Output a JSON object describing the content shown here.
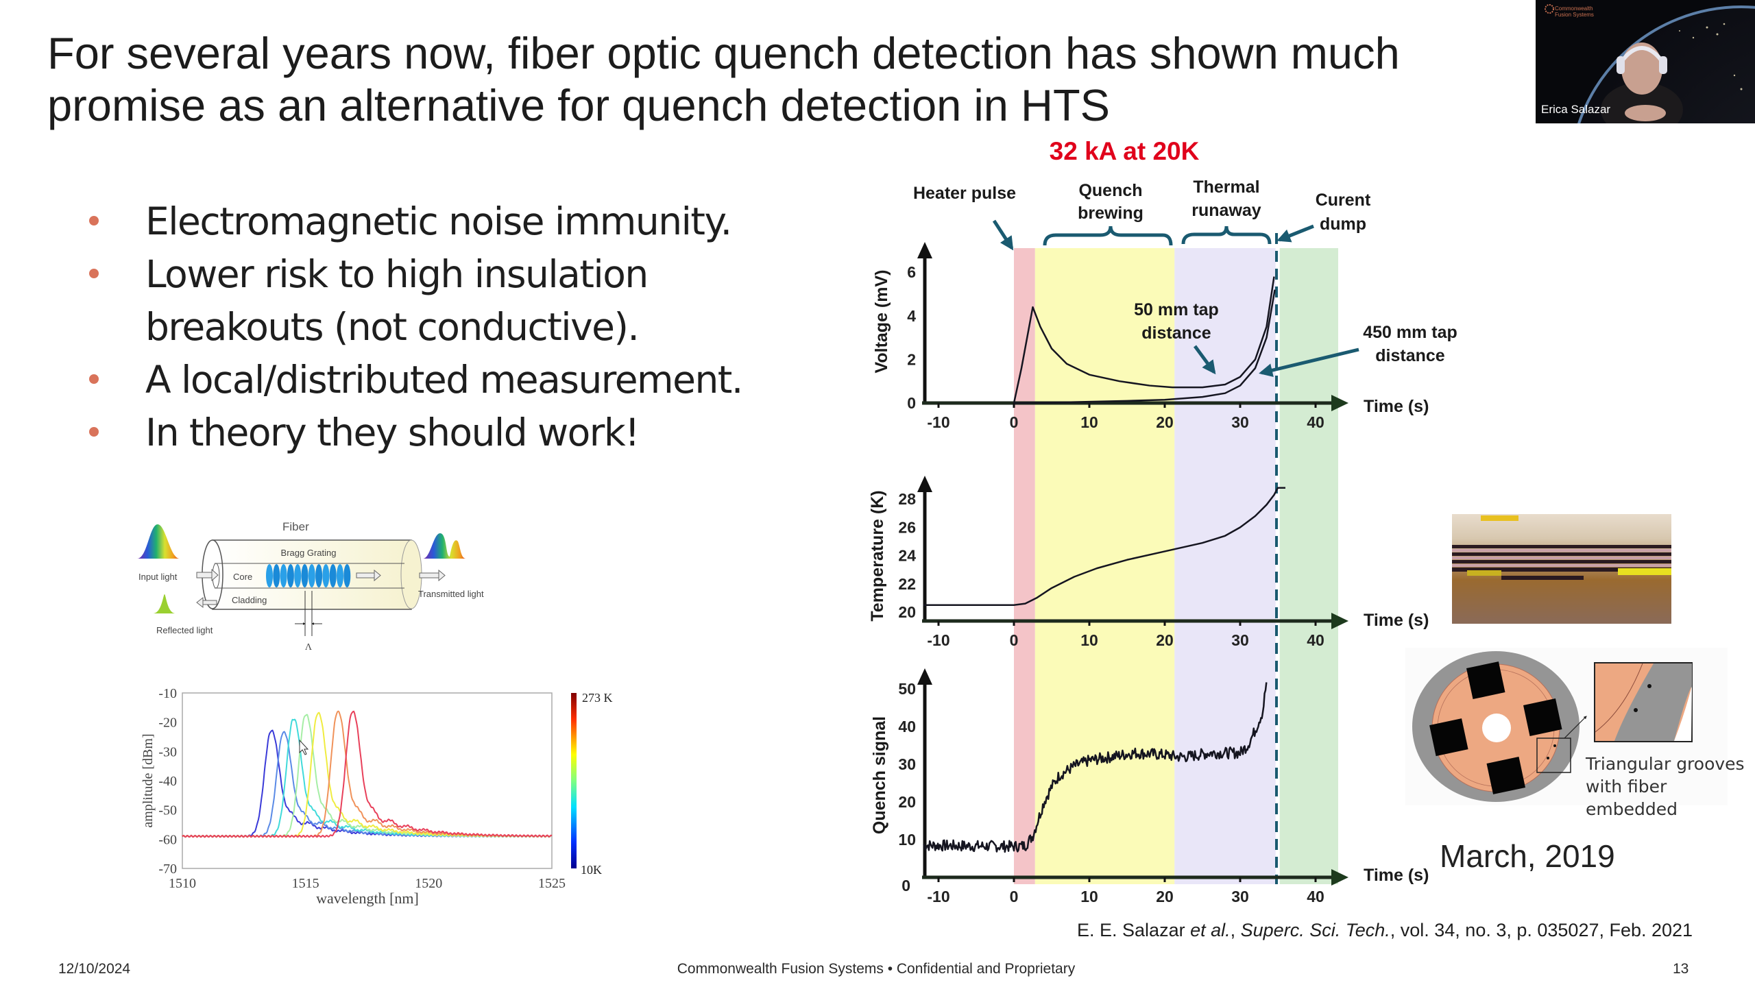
{
  "slide": {
    "title": "For several years now, fiber optic quench detection has shown much promise as an alternative for quench detection in HTS",
    "bullets": [
      "Electromagnetic noise immunity.",
      "Lower risk to high insulation breakouts (not conductive).",
      "A local/distributed measurement.",
      "In theory they should work!"
    ],
    "footer": {
      "date": "12/10/2024",
      "center": "Commonwealth Fusion Systems • Confidential and Proprietary",
      "page_number": "13"
    },
    "citation": {
      "authors": "E. E. Salazar ",
      "etal": "et al.",
      "sep": ", ",
      "journal": "Superc. Sci. Tech.",
      "rest": ", vol. 34, no. 3, p. 035027, Feb. 2021"
    },
    "date_label": "March, 2019",
    "grooves_caption": "Triangular grooves with fiber embedded",
    "bullet_color": "#d9735a"
  },
  "webcam": {
    "participant_name": "Erica Salazar",
    "logo_text": "Commonwealth Fusion Systems"
  },
  "bragg_diagram": {
    "fiber": "Fiber",
    "bragg_grating": "Bragg Grating",
    "input_light": "Input light",
    "core": "Core",
    "cladding": "Cladding",
    "transmitted_light": "Transmitted light",
    "reflected_light": "Reflected light",
    "period_symbol": "Λ"
  },
  "figure": {
    "headline": "32 kA at 20K",
    "headline_color": "#e0001b",
    "phases": {
      "heater_pulse": "Heater pulse",
      "quench_brewing": [
        "Quench",
        "brewing"
      ],
      "thermal_runaway": [
        "Thermal",
        "runaway"
      ],
      "current_dump": [
        "Curent",
        "dump"
      ]
    },
    "tap_50": [
      "50 mm tap",
      "distance"
    ],
    "tap_450": [
      "450 mm tap",
      "distance"
    ],
    "arrow_color": "#1a5a70",
    "band_colors": {
      "heater": "#f4c4c8",
      "brewing": "#fbfbb8",
      "runaway": "#e9e6f8",
      "dump": "#d4ecd2"
    }
  },
  "chart_data": [
    {
      "type": "line",
      "xlabel": "Time (s)",
      "ylabel": "Voltage (mV)",
      "xticks": [
        -10,
        0,
        10,
        20,
        30,
        40
      ],
      "yticks": [
        0,
        2,
        4,
        6
      ],
      "xlim": [
        -12,
        43
      ],
      "ylim": [
        0,
        7
      ],
      "series": [
        {
          "name": "50 mm tap distance",
          "x": [
            0,
            1,
            2.5,
            3.5,
            5,
            7,
            10,
            14,
            18,
            21,
            25,
            28,
            30,
            32,
            33.5,
            34.5
          ],
          "y": [
            0,
            1.6,
            4.4,
            3.5,
            2.5,
            1.8,
            1.3,
            1.0,
            0.8,
            0.72,
            0.72,
            0.85,
            1.2,
            2.0,
            3.5,
            5.8
          ]
        },
        {
          "name": "450 mm tap distance",
          "x": [
            0,
            5,
            10,
            15,
            20,
            25,
            28,
            30,
            32,
            33.5,
            34.6
          ],
          "y": [
            0,
            0.02,
            0.06,
            0.1,
            0.15,
            0.28,
            0.45,
            0.8,
            1.6,
            3.0,
            5.2
          ]
        }
      ],
      "phase_bounds_s": [
        0,
        2.8,
        21.3,
        34.7,
        43
      ]
    },
    {
      "type": "line",
      "xlabel": "Time (s)",
      "ylabel": "Temperature (K)",
      "xticks": [
        -10,
        0,
        10,
        20,
        30,
        40
      ],
      "yticks": [
        20,
        22,
        24,
        26,
        28
      ],
      "xlim": [
        -12,
        43
      ],
      "ylim": [
        19,
        29.5
      ],
      "series": [
        {
          "x": [
            -12,
            0,
            1.5,
            3,
            5,
            8,
            11,
            15,
            20,
            25,
            28,
            30,
            32,
            33.5,
            34.5,
            35,
            36
          ],
          "y": [
            20.5,
            20.5,
            20.6,
            21.0,
            21.7,
            22.5,
            23.1,
            23.7,
            24.3,
            24.9,
            25.4,
            26.0,
            26.8,
            27.6,
            28.3,
            28.8,
            28.8
          ]
        }
      ]
    },
    {
      "type": "line",
      "xlabel": "Time (s)",
      "ylabel": "Quench signal",
      "xticks": [
        -10,
        0,
        10,
        20,
        30,
        40
      ],
      "yticks": [
        0,
        10,
        20,
        30,
        40,
        50
      ],
      "xlim": [
        -12,
        43
      ],
      "ylim": [
        0,
        55
      ],
      "series": [
        {
          "x": [
            -12,
            -5,
            0,
            1.5,
            2.5,
            3,
            4,
            5,
            6,
            8,
            10,
            13,
            16,
            20,
            21.5,
            23,
            26,
            30,
            31,
            32,
            33,
            33.5
          ],
          "y": [
            8.5,
            8.3,
            8.2,
            8.4,
            11,
            14,
            20,
            24,
            27,
            29.5,
            31,
            32,
            33,
            32.5,
            32,
            32,
            33,
            33,
            35,
            39,
            44,
            52
          ]
        }
      ]
    },
    {
      "type": "line",
      "xlabel": "wavelength [nm]",
      "ylabel": "amplitude [dBm]",
      "xticks": [
        1510,
        1515,
        1520,
        1525
      ],
      "yticks": [
        -10,
        -20,
        -30,
        -40,
        -50,
        -60,
        -70
      ],
      "xlim": [
        1510,
        1525
      ],
      "ylim": [
        -70,
        -10
      ],
      "colorbar": {
        "max_label": "273 K",
        "min_label": "10K"
      },
      "baseline_dbm": -59,
      "series": [
        {
          "peak_nm": 1513.6,
          "peak_dbm": -23,
          "color": "#3a3ad8"
        },
        {
          "peak_nm": 1514.1,
          "peak_dbm": -23.5,
          "color": "#5a8ae6"
        },
        {
          "peak_nm": 1514.5,
          "peak_dbm": -19,
          "color": "#40dada"
        },
        {
          "peak_nm": 1515.0,
          "peak_dbm": -17.5,
          "color": "#a6eea6"
        },
        {
          "peak_nm": 1515.5,
          "peak_dbm": -17,
          "color": "#f0ec40"
        },
        {
          "peak_nm": 1516.3,
          "peak_dbm": -16.5,
          "color": "#f0925a"
        },
        {
          "peak_nm": 1516.9,
          "peak_dbm": -16.5,
          "color": "#e8405a"
        }
      ]
    }
  ]
}
